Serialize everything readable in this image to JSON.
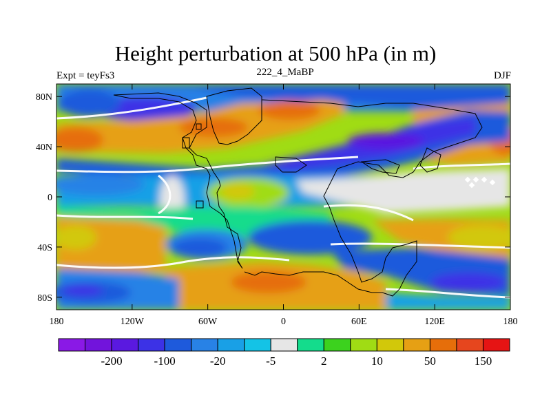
{
  "title": "Height perturbation at 500 hPa (in m)",
  "subtitle_left": "Expt = teyFs3",
  "subtitle_center": "222_4_MaBP",
  "subtitle_right": "DJF",
  "lat_ticks": [
    {
      "value": 80,
      "label": "80N"
    },
    {
      "value": 40,
      "label": "40N"
    },
    {
      "value": 0,
      "label": "0"
    },
    {
      "value": -40,
      "label": "40S"
    },
    {
      "value": -80,
      "label": "80S"
    }
  ],
  "lon_ticks": [
    {
      "value": -180,
      "label": "180"
    },
    {
      "value": -120,
      "label": "120W"
    },
    {
      "value": -60,
      "label": "60W"
    },
    {
      "value": 0,
      "label": "0"
    },
    {
      "value": 60,
      "label": "60E"
    },
    {
      "value": 120,
      "label": "120E"
    },
    {
      "value": 180,
      "label": "180"
    }
  ],
  "colorbar": {
    "colors": [
      "#8a19e6",
      "#7214dc",
      "#5a19e0",
      "#3c32e6",
      "#1e5adc",
      "#2882e6",
      "#19a0e6",
      "#14c3e6",
      "#e6e6e6",
      "#14dc8c",
      "#3cd21e",
      "#a0dc14",
      "#d2c80a",
      "#e6a014",
      "#e66e0a",
      "#e6461e",
      "#e61414"
    ],
    "labels": [
      {
        "after_index": 1,
        "text": "-200"
      },
      {
        "after_index": 3,
        "text": "-100"
      },
      {
        "after_index": 5,
        "text": "-20"
      },
      {
        "after_index": 7,
        "text": "-5"
      },
      {
        "after_index": 9,
        "text": "2"
      },
      {
        "after_index": 11,
        "text": "10"
      },
      {
        "after_index": 13,
        "text": "50"
      },
      {
        "after_index": 15,
        "text": "150"
      }
    ]
  }
}
